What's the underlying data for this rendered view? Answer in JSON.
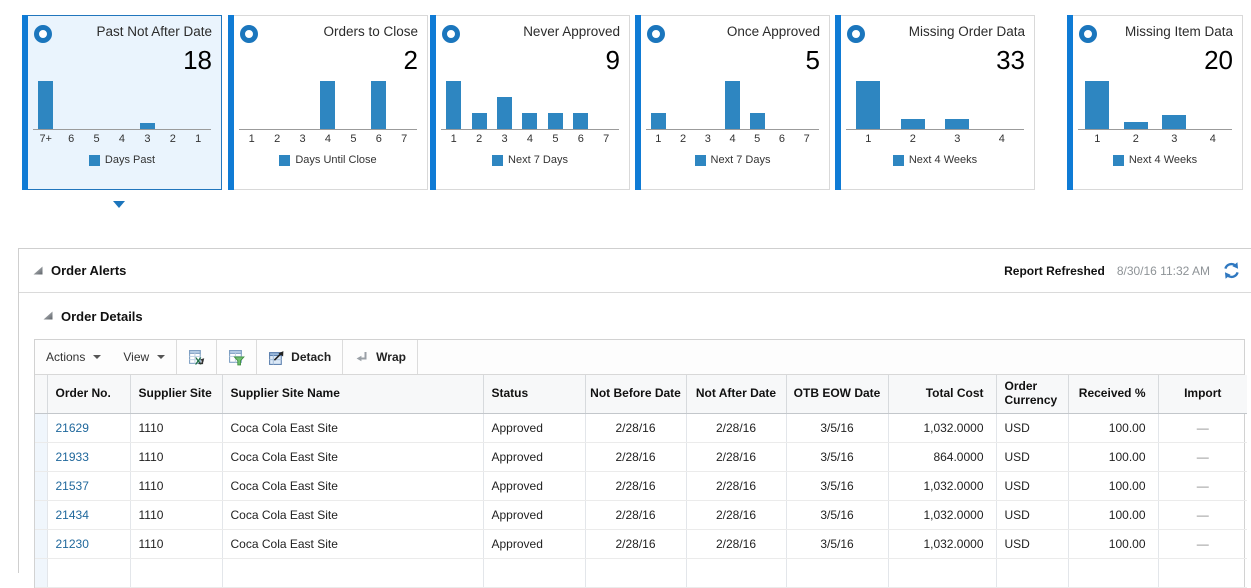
{
  "colors": {
    "accent_blue": "#0f7bd5",
    "bar_blue": "#2e86c1",
    "selected_tile_bg": "#eaf4fd",
    "selected_tile_border": "#2176bd",
    "link_blue": "#20689c"
  },
  "icons": {
    "radio-ring-icon": "blue donut circle",
    "tile-selected-arrow-icon": "small blue down triangle",
    "disclosure-triangle-icon": "gray expanded triangle",
    "refresh-icon": "blue circular arrows",
    "export-to-excel-icon": "spreadsheet with green X",
    "filter-icon": "spreadsheet with green funnel",
    "detach-icon": "window with up-right arrow",
    "wrap-icon": "gray bent arrow",
    "chevron-down-icon": "small down caret"
  },
  "selected_tile_index": 0,
  "chart_data": [
    {
      "type": "bar",
      "title": "Past Not After Date",
      "count": "18",
      "categories": [
        "7+",
        "6",
        "5",
        "4",
        "3",
        "2",
        "1"
      ],
      "values": [
        16,
        0,
        0,
        0,
        2,
        0,
        0
      ],
      "legend": "Days Past"
    },
    {
      "type": "bar",
      "title": "Orders to Close",
      "count": "2",
      "categories": [
        "1",
        "2",
        "3",
        "4",
        "5",
        "6",
        "7"
      ],
      "values": [
        0,
        0,
        0,
        1,
        0,
        1,
        0
      ],
      "legend": "Days Until Close"
    },
    {
      "type": "bar",
      "title": "Never Approved",
      "count": "9",
      "categories": [
        "1",
        "2",
        "3",
        "4",
        "5",
        "6",
        "7"
      ],
      "values": [
        3,
        1,
        2,
        1,
        1,
        1,
        0
      ],
      "legend": "Next 7 Days"
    },
    {
      "type": "bar",
      "title": "Once Approved",
      "count": "5",
      "categories": [
        "1",
        "2",
        "3",
        "4",
        "5",
        "6",
        "7"
      ],
      "values": [
        1,
        0,
        0,
        3,
        1,
        0,
        0
      ],
      "legend": "Next 7 Days"
    },
    {
      "type": "bar",
      "title": "Missing Order Data",
      "count": "33",
      "categories": [
        "1",
        "2",
        "3",
        "4"
      ],
      "values": [
        23,
        5,
        5,
        0
      ],
      "legend": "Next 4 Weeks"
    },
    {
      "type": "bar",
      "title": "Missing Item Data",
      "count": "20",
      "categories": [
        "1",
        "2",
        "3",
        "4"
      ],
      "values": [
        14,
        2,
        4,
        0
      ],
      "legend": "Next 4 Weeks"
    }
  ],
  "order_alerts": {
    "title": "Order Alerts",
    "report_refreshed_label": "Report Refreshed",
    "report_refreshed_time": "8/30/16 11:32 AM"
  },
  "order_details": {
    "title": "Order Details",
    "toolbar": {
      "actions": "Actions",
      "view": "View",
      "detach": "Detach",
      "wrap": "Wrap"
    }
  },
  "table": {
    "columns": [
      {
        "key": "order_no",
        "label": "Order No."
      },
      {
        "key": "supplier_site",
        "label": "Supplier Site"
      },
      {
        "key": "supplier_site_name",
        "label": "Supplier Site Name"
      },
      {
        "key": "status",
        "label": "Status"
      },
      {
        "key": "not_before_date",
        "label": "Not Before Date"
      },
      {
        "key": "not_after_date",
        "label": "Not After Date"
      },
      {
        "key": "otb_eow_date",
        "label": "OTB EOW Date"
      },
      {
        "key": "total_cost",
        "label": "Total Cost"
      },
      {
        "key": "order_currency",
        "label": "Order Currency"
      },
      {
        "key": "received_pct",
        "label": "Received %"
      },
      {
        "key": "import",
        "label": "Import"
      }
    ],
    "rows": [
      {
        "order_no": "21629",
        "supplier_site": "1110",
        "supplier_site_name": "Coca Cola East Site",
        "status": "Approved",
        "not_before_date": "2/28/16",
        "not_after_date": "2/28/16",
        "otb_eow_date": "3/5/16",
        "total_cost": "1,032.0000",
        "order_currency": "USD",
        "received_pct": "100.00",
        "import": "—"
      },
      {
        "order_no": "21933",
        "supplier_site": "1110",
        "supplier_site_name": "Coca Cola East Site",
        "status": "Approved",
        "not_before_date": "2/28/16",
        "not_after_date": "2/28/16",
        "otb_eow_date": "3/5/16",
        "total_cost": "864.0000",
        "order_currency": "USD",
        "received_pct": "100.00",
        "import": "—"
      },
      {
        "order_no": "21537",
        "supplier_site": "1110",
        "supplier_site_name": "Coca Cola East Site",
        "status": "Approved",
        "not_before_date": "2/28/16",
        "not_after_date": "2/28/16",
        "otb_eow_date": "3/5/16",
        "total_cost": "1,032.0000",
        "order_currency": "USD",
        "received_pct": "100.00",
        "import": "—"
      },
      {
        "order_no": "21434",
        "supplier_site": "1110",
        "supplier_site_name": "Coca Cola East Site",
        "status": "Approved",
        "not_before_date": "2/28/16",
        "not_after_date": "2/28/16",
        "otb_eow_date": "3/5/16",
        "total_cost": "1,032.0000",
        "order_currency": "USD",
        "received_pct": "100.00",
        "import": "—"
      },
      {
        "order_no": "21230",
        "supplier_site": "1110",
        "supplier_site_name": "Coca Cola East Site",
        "status": "Approved",
        "not_before_date": "2/28/16",
        "not_after_date": "2/28/16",
        "otb_eow_date": "3/5/16",
        "total_cost": "1,032.0000",
        "order_currency": "USD",
        "received_pct": "100.00",
        "import": "—"
      }
    ]
  }
}
